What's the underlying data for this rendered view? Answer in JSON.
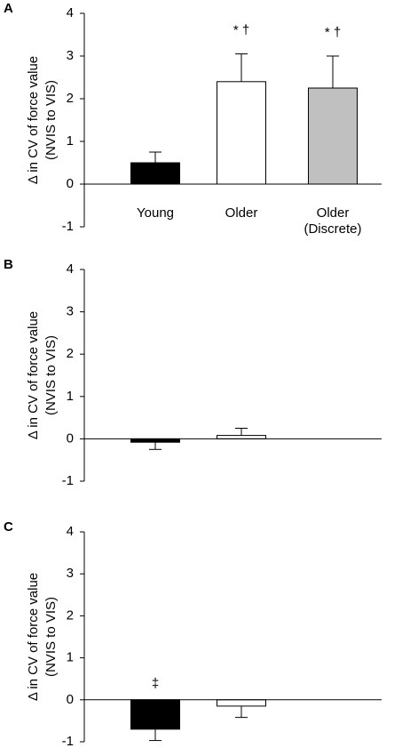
{
  "chart_data": [
    {
      "type": "bar",
      "panel_label": "A",
      "ylabel": [
        "Δ in CV of force value",
        "(NVIS to VIS)"
      ],
      "categories": [
        "Young",
        "Older",
        "Older\n(Discrete)"
      ],
      "values": [
        0.5,
        2.4,
        2.25
      ],
      "errors": [
        0.25,
        0.65,
        0.75
      ],
      "colors": [
        "#000000",
        "#ffffff",
        "#c0c0c0"
      ],
      "annotations": [
        null,
        "* †",
        "* †"
      ],
      "ylim": [
        -1,
        4
      ],
      "yticks": [
        -1,
        0,
        1,
        2,
        3,
        4
      ]
    },
    {
      "type": "bar",
      "panel_label": "B",
      "ylabel": [
        "Δ in CV of force value",
        "(NVIS to VIS)"
      ],
      "categories": [
        null,
        null,
        null
      ],
      "values": [
        -0.08,
        0.08,
        null
      ],
      "errors": [
        0.17,
        0.17,
        null
      ],
      "colors": [
        "#000000",
        "#ffffff",
        "#c0c0c0"
      ],
      "ylim": [
        -1,
        4
      ],
      "yticks": [
        -1,
        0,
        1,
        2,
        3,
        4
      ]
    },
    {
      "type": "bar",
      "panel_label": "C",
      "ylabel": [
        "Δ in CV of force value",
        "(NVIS to VIS)"
      ],
      "categories": [
        null,
        null,
        null
      ],
      "values": [
        -0.7,
        -0.15,
        null
      ],
      "errors": [
        0.27,
        0.27,
        null
      ],
      "colors": [
        "#000000",
        "#ffffff",
        "#c0c0c0"
      ],
      "annotations": [
        "‡",
        null,
        null
      ],
      "ylim": [
        -1,
        4
      ],
      "yticks": [
        -1,
        0,
        1,
        2,
        3,
        4
      ]
    }
  ]
}
